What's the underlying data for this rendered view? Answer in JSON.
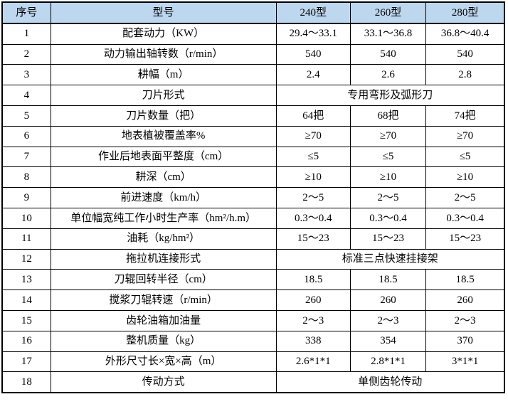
{
  "table": {
    "header": {
      "col_no": "序号",
      "col_model": "型号",
      "models": [
        "240型",
        "260型",
        "280型"
      ]
    },
    "rows": [
      {
        "no": "1",
        "label": "配套动力（KW）",
        "values": [
          "29.4～33.1",
          "33.1～36.8",
          "36.8～40.4"
        ]
      },
      {
        "no": "2",
        "label": "动力输出轴转数（r/min）",
        "values": [
          "540",
          "540",
          "540"
        ]
      },
      {
        "no": "3",
        "label": "耕幅（m）",
        "values": [
          "2.4",
          "2.6",
          "2.8"
        ]
      },
      {
        "no": "4",
        "label": "刀片形式",
        "merged": "专用弯形及弧形刀"
      },
      {
        "no": "5",
        "label": "刀片数量（把）",
        "values": [
          "64把",
          "68把",
          "74把"
        ]
      },
      {
        "no": "6",
        "label": "地表植被覆盖率%",
        "values": [
          "≥70",
          "≥70",
          "≥70"
        ]
      },
      {
        "no": "7",
        "label": "作业后地表面平整度（cm）",
        "values": [
          "≤5",
          "≤5",
          "≤5"
        ]
      },
      {
        "no": "8",
        "label": "耕深（cm）",
        "values": [
          "≥10",
          "≥10",
          "≥10"
        ]
      },
      {
        "no": "9",
        "label": "前进速度（km/h）",
        "values": [
          "2～5",
          "2～5",
          "2～5"
        ]
      },
      {
        "no": "10",
        "label": "单位幅宽纯工作小时生产率（hm²/h.m）",
        "values": [
          "0.3～0.4",
          "0.3～0.4",
          "0.3～0.4"
        ]
      },
      {
        "no": "11",
        "label": "油耗（kg/hm²）",
        "values": [
          "15～23",
          "15～23",
          "15～23"
        ]
      },
      {
        "no": "12",
        "label": "拖拉机连接形式",
        "merged": "标准三点快速挂接架"
      },
      {
        "no": "13",
        "label": "刀辊回转半径（cm）",
        "values": [
          "18.5",
          "18.5",
          "18.5"
        ]
      },
      {
        "no": "14",
        "label": "搅浆刀辊转速（r/min）",
        "values": [
          "260",
          "260",
          "260"
        ]
      },
      {
        "no": "15",
        "label": "齿轮油箱加油量",
        "values": [
          "2～3",
          "2～3",
          "2～3"
        ]
      },
      {
        "no": "16",
        "label": "整机质量（kg）",
        "values": [
          "338",
          "354",
          "370"
        ]
      },
      {
        "no": "17",
        "label": "外形尺寸长×宽×高（m）",
        "values": [
          "2.6*1*1",
          "2.8*1*1",
          "3*1*1"
        ]
      },
      {
        "no": "18",
        "label": "传动方式",
        "merged": "单侧齿轮传动"
      }
    ],
    "colors": {
      "header_bg": "#BDD7EE",
      "border": "#000000",
      "text": "#000000",
      "body_bg": "#FFFFFF"
    }
  }
}
